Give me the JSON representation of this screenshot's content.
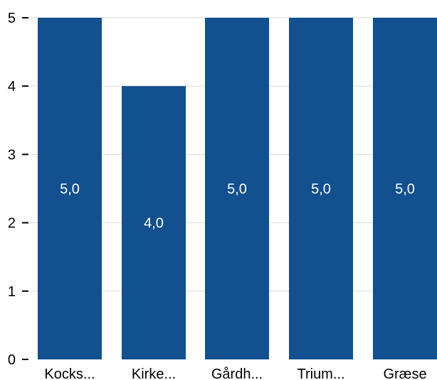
{
  "chart_data": {
    "type": "bar",
    "categories": [
      "Kocks...",
      "Kirke...",
      "Gårdh...",
      "Trium...",
      "Græse"
    ],
    "values": [
      5.0,
      4.0,
      5.0,
      5.0,
      5.0
    ],
    "value_labels": [
      "5,0",
      "4,0",
      "5,0",
      "5,0",
      "5,0"
    ],
    "y_ticks": [
      "0",
      "1",
      "2",
      "3",
      "4",
      "5"
    ],
    "ylim": [
      0,
      5
    ],
    "grid": true,
    "bar_color": "#12508f",
    "grid_color": "#d9d9d9",
    "title": "",
    "xlabel": "",
    "ylabel": ""
  }
}
